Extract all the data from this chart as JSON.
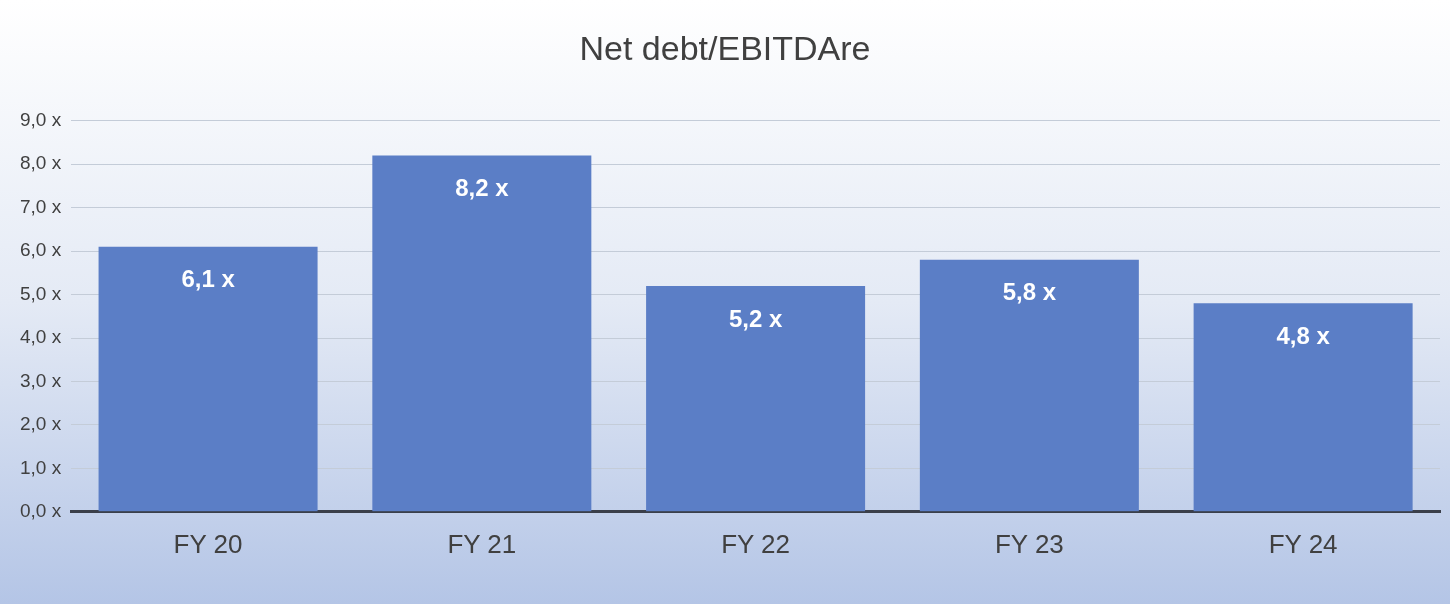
{
  "chart_data": {
    "type": "bar",
    "title": "Net debt/EBITDAre",
    "categories": [
      "FY 20",
      "FY 21",
      "FY 22",
      "FY 23",
      "FY 24"
    ],
    "values": [
      6.1,
      8.2,
      5.2,
      5.8,
      4.8
    ],
    "value_labels": [
      "6,1 x",
      "8,2 x",
      "5,2 x",
      "5,8 x",
      "4,8 x"
    ],
    "color": "#5b7ec6",
    "ylim": [
      0,
      9
    ],
    "yticks": [
      {
        "value": 0,
        "label": "0,0 x"
      },
      {
        "value": 1,
        "label": "1,0 x"
      },
      {
        "value": 2,
        "label": "2,0 x"
      },
      {
        "value": 3,
        "label": "3,0 x"
      },
      {
        "value": 4,
        "label": "4,0 x"
      },
      {
        "value": 5,
        "label": "5,0 x"
      },
      {
        "value": 6,
        "label": "6,0 x"
      },
      {
        "value": 7,
        "label": "7,0 x"
      },
      {
        "value": 8,
        "label": "8,0 x"
      },
      {
        "value": 9,
        "label": "9,0 x"
      }
    ],
    "grid": "y",
    "legend": false
  }
}
